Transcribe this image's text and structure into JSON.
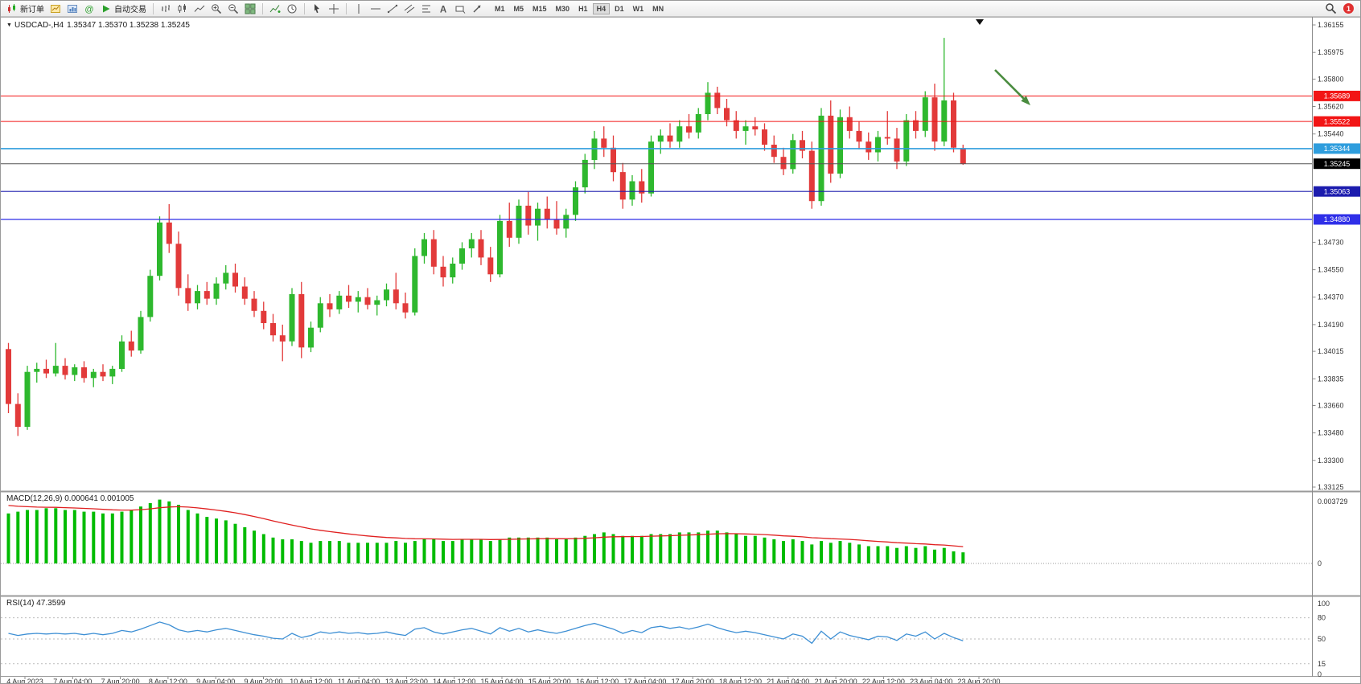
{
  "toolbar": {
    "new_order_label": "新订单",
    "autotrade_label": "自动交易",
    "timeframes": [
      "M1",
      "M5",
      "M15",
      "M30",
      "H1",
      "H4",
      "D1",
      "W1",
      "MN"
    ],
    "active_timeframe": "H4",
    "notification_count": "1"
  },
  "main_chart": {
    "title": "USDCAD-,H4",
    "ohlc_text": "1.35347 1.35370 1.35238 1.35245"
  },
  "macd_panel": {
    "name": "MACD(12,26,9)",
    "values_text": "0.000641 0.001005"
  },
  "rsi_panel": {
    "name": "RSI(14)",
    "value_text": "47.3599"
  },
  "chart_data": {
    "type": "candlestick",
    "symbol": "USDCAD-",
    "timeframe": "H4",
    "price_axis": {
      "top_price": 1.36155,
      "bottom_price": 1.33125,
      "ticks": [
        "1.36155",
        "1.35975",
        "1.35800",
        "1.35620",
        "1.35440",
        "1.34730",
        "1.34550",
        "1.34370",
        "1.34190",
        "1.34015",
        "1.33835",
        "1.33660",
        "1.33480",
        "1.33300",
        "1.33125"
      ]
    },
    "time_labels": [
      "4 Aug 2023",
      "7 Aug 04:00",
      "7 Aug 20:00",
      "8 Aug 12:00",
      "9 Aug 04:00",
      "9 Aug 20:00",
      "10 Aug 12:00",
      "11 Aug 04:00",
      "13 Aug 23:00",
      "14 Aug 12:00",
      "15 Aug 04:00",
      "15 Aug 20:00",
      "16 Aug 12:00",
      "17 Aug 04:00",
      "17 Aug 20:00",
      "18 Aug 12:00",
      "21 Aug 04:00",
      "21 Aug 20:00",
      "22 Aug 12:00",
      "23 Aug 04:00",
      "23 Aug 20:00"
    ],
    "hlines": [
      {
        "label": "1.35689",
        "price": 1.35689,
        "color": "#f21515",
        "width": 1
      },
      {
        "label": "1.35522",
        "price": 1.35522,
        "color": "#f21515",
        "width": 1
      },
      {
        "label": "1.35344",
        "price": 1.35344,
        "color": "#2e9ddd",
        "width": 1.6
      },
      {
        "label": "1.35063",
        "price": 1.35063,
        "color": "#1c1cae",
        "width": 1.2
      },
      {
        "label": "1.34880",
        "price": 1.3488,
        "color": "#2f2fe8",
        "width": 1.2
      }
    ],
    "current_price": {
      "label": "1.35245",
      "price": 1.35245,
      "line_color": "#555555",
      "box_color": "#000000"
    },
    "up_color": "#2eb82e",
    "down_color": "#e23a3a",
    "candles_ohlc": [
      [
        1.3403,
        1.3407,
        1.3361,
        1.3367
      ],
      [
        1.3367,
        1.3374,
        1.3346,
        1.3352
      ],
      [
        1.3352,
        1.3392,
        1.335,
        1.3388
      ],
      [
        1.3388,
        1.3394,
        1.3381,
        1.339
      ],
      [
        1.339,
        1.3396,
        1.3384,
        1.3387
      ],
      [
        1.3387,
        1.3407,
        1.3385,
        1.3392
      ],
      [
        1.3392,
        1.3397,
        1.3383,
        1.3386
      ],
      [
        1.3386,
        1.3393,
        1.3382,
        1.3391
      ],
      [
        1.3391,
        1.3395,
        1.3381,
        1.3384
      ],
      [
        1.3384,
        1.339,
        1.3378,
        1.3388
      ],
      [
        1.3388,
        1.3393,
        1.3382,
        1.3385
      ],
      [
        1.3385,
        1.3392,
        1.338,
        1.339
      ],
      [
        1.339,
        1.3412,
        1.3388,
        1.3408
      ],
      [
        1.3408,
        1.3415,
        1.3398,
        1.3402
      ],
      [
        1.3402,
        1.3428,
        1.34,
        1.3424
      ],
      [
        1.3424,
        1.3455,
        1.3421,
        1.3451
      ],
      [
        1.3451,
        1.349,
        1.3448,
        1.3486
      ],
      [
        1.3486,
        1.3498,
        1.3466,
        1.3472
      ],
      [
        1.3472,
        1.348,
        1.3438,
        1.3443
      ],
      [
        1.3443,
        1.3452,
        1.3428,
        1.3433
      ],
      [
        1.3433,
        1.3445,
        1.3429,
        1.3441
      ],
      [
        1.3441,
        1.3447,
        1.3432,
        1.3436
      ],
      [
        1.3436,
        1.345,
        1.3432,
        1.3446
      ],
      [
        1.3446,
        1.3458,
        1.3442,
        1.3453
      ],
      [
        1.3453,
        1.3459,
        1.344,
        1.3444
      ],
      [
        1.3444,
        1.345,
        1.3432,
        1.3436
      ],
      [
        1.3436,
        1.3441,
        1.3424,
        1.3428
      ],
      [
        1.3428,
        1.3434,
        1.3416,
        1.342
      ],
      [
        1.342,
        1.3426,
        1.3408,
        1.3412
      ],
      [
        1.3412,
        1.3419,
        1.3395,
        1.3408
      ],
      [
        1.3408,
        1.3443,
        1.3405,
        1.3439
      ],
      [
        1.3439,
        1.3447,
        1.3397,
        1.3404
      ],
      [
        1.3404,
        1.3421,
        1.3401,
        1.3417
      ],
      [
        1.3417,
        1.3437,
        1.3414,
        1.3433
      ],
      [
        1.3433,
        1.3439,
        1.3424,
        1.3429
      ],
      [
        1.3429,
        1.3441,
        1.3426,
        1.3438
      ],
      [
        1.3438,
        1.3445,
        1.343,
        1.3434
      ],
      [
        1.3434,
        1.3441,
        1.3427,
        1.3437
      ],
      [
        1.3437,
        1.3443,
        1.3429,
        1.3432
      ],
      [
        1.3432,
        1.3438,
        1.3425,
        1.3435
      ],
      [
        1.3435,
        1.3446,
        1.3431,
        1.3442
      ],
      [
        1.3442,
        1.3453,
        1.3429,
        1.3433
      ],
      [
        1.3433,
        1.344,
        1.3423,
        1.3427
      ],
      [
        1.3427,
        1.3469,
        1.3425,
        1.3464
      ],
      [
        1.3464,
        1.3479,
        1.3459,
        1.3475
      ],
      [
        1.3475,
        1.3481,
        1.3452,
        1.3457
      ],
      [
        1.3457,
        1.3464,
        1.3444,
        1.345
      ],
      [
        1.345,
        1.3463,
        1.3446,
        1.3459
      ],
      [
        1.3459,
        1.3473,
        1.3455,
        1.3469
      ],
      [
        1.3469,
        1.3479,
        1.3463,
        1.3475
      ],
      [
        1.3475,
        1.3481,
        1.3458,
        1.3463
      ],
      [
        1.3463,
        1.347,
        1.3447,
        1.3452
      ],
      [
        1.3452,
        1.3491,
        1.345,
        1.3487
      ],
      [
        1.3487,
        1.3499,
        1.347,
        1.3476
      ],
      [
        1.3476,
        1.3501,
        1.3472,
        1.3497
      ],
      [
        1.3497,
        1.3506,
        1.3478,
        1.3484
      ],
      [
        1.3484,
        1.3499,
        1.3474,
        1.3495
      ],
      [
        1.3495,
        1.3503,
        1.3482,
        1.3488
      ],
      [
        1.3488,
        1.35,
        1.3478,
        1.3482
      ],
      [
        1.3482,
        1.3495,
        1.3476,
        1.3491
      ],
      [
        1.3491,
        1.3513,
        1.3487,
        1.3509
      ],
      [
        1.3509,
        1.3531,
        1.3505,
        1.3527
      ],
      [
        1.3527,
        1.3546,
        1.3521,
        1.3541
      ],
      [
        1.3541,
        1.3549,
        1.3529,
        1.3535
      ],
      [
        1.3535,
        1.3543,
        1.3513,
        1.3519
      ],
      [
        1.3519,
        1.3525,
        1.3495,
        1.3501
      ],
      [
        1.3501,
        1.3517,
        1.3497,
        1.3513
      ],
      [
        1.3513,
        1.3521,
        1.3499,
        1.3505
      ],
      [
        1.3505,
        1.3543,
        1.3503,
        1.3539
      ],
      [
        1.3539,
        1.3547,
        1.3531,
        1.3543
      ],
      [
        1.3543,
        1.3551,
        1.3535,
        1.3539
      ],
      [
        1.3539,
        1.3553,
        1.3535,
        1.3549
      ],
      [
        1.3549,
        1.3557,
        1.3541,
        1.3545
      ],
      [
        1.3545,
        1.3561,
        1.3541,
        1.3557
      ],
      [
        1.3557,
        1.3578,
        1.3553,
        1.3571
      ],
      [
        1.3571,
        1.3575,
        1.3557,
        1.3561
      ],
      [
        1.3561,
        1.3567,
        1.3549,
        1.3553
      ],
      [
        1.3553,
        1.3559,
        1.3541,
        1.3546
      ],
      [
        1.3546,
        1.3553,
        1.3537,
        1.3549
      ],
      [
        1.3549,
        1.3555,
        1.3543,
        1.3547
      ],
      [
        1.3547,
        1.3551,
        1.3533,
        1.3537
      ],
      [
        1.3537,
        1.3543,
        1.3525,
        1.3529
      ],
      [
        1.3529,
        1.3535,
        1.3517,
        1.3521
      ],
      [
        1.3521,
        1.3544,
        1.3518,
        1.354
      ],
      [
        1.354,
        1.3546,
        1.3528,
        1.3533
      ],
      [
        1.3533,
        1.3539,
        1.3495,
        1.35
      ],
      [
        1.35,
        1.3561,
        1.3497,
        1.3556
      ],
      [
        1.3556,
        1.3566,
        1.3512,
        1.3518
      ],
      [
        1.3518,
        1.356,
        1.3515,
        1.3555
      ],
      [
        1.3555,
        1.3562,
        1.3541,
        1.3546
      ],
      [
        1.3546,
        1.3552,
        1.3534,
        1.3539
      ],
      [
        1.3539,
        1.3545,
        1.3527,
        1.3532
      ],
      [
        1.3532,
        1.3546,
        1.3526,
        1.3542
      ],
      [
        1.3542,
        1.3559,
        1.3537,
        1.3541
      ],
      [
        1.3541,
        1.3548,
        1.3521,
        1.3526
      ],
      [
        1.3526,
        1.3557,
        1.3523,
        1.3553
      ],
      [
        1.3553,
        1.3559,
        1.3541,
        1.3546
      ],
      [
        1.3546,
        1.3572,
        1.3542,
        1.3568
      ],
      [
        1.3568,
        1.3577,
        1.3533,
        1.3539
      ],
      [
        1.3539,
        1.3607,
        1.3536,
        1.3566
      ],
      [
        1.3566,
        1.3571,
        1.3532,
        1.3535
      ],
      [
        1.35347,
        1.3537,
        1.35238,
        1.35245
      ]
    ],
    "macd": {
      "params": "12,26,9",
      "main_value": 0.000641,
      "signal_value": 0.001005,
      "axis_labels": [
        "0.003729",
        "0"
      ],
      "max_scale": 0.003729,
      "hist_color": "#00bb00",
      "signal_color": "#e02020",
      "histogram": [
        0.0029,
        0.003,
        0.0031,
        0.0031,
        0.0032,
        0.0032,
        0.0031,
        0.0031,
        0.003,
        0.003,
        0.0029,
        0.0029,
        0.003,
        0.0031,
        0.0033,
        0.0035,
        0.0037,
        0.0036,
        0.0034,
        0.0031,
        0.0029,
        0.0027,
        0.0026,
        0.0025,
        0.0023,
        0.0021,
        0.0019,
        0.0017,
        0.0015,
        0.0014,
        0.0014,
        0.0013,
        0.0012,
        0.0013,
        0.0013,
        0.0013,
        0.0012,
        0.0012,
        0.0012,
        0.0012,
        0.0012,
        0.0013,
        0.0012,
        0.0013,
        0.0014,
        0.0014,
        0.0013,
        0.0013,
        0.0014,
        0.0014,
        0.0014,
        0.0013,
        0.0014,
        0.0015,
        0.0015,
        0.0015,
        0.0015,
        0.0015,
        0.0014,
        0.0014,
        0.0015,
        0.0016,
        0.0017,
        0.0018,
        0.0017,
        0.0016,
        0.0016,
        0.0016,
        0.0017,
        0.0017,
        0.0017,
        0.0018,
        0.0018,
        0.0018,
        0.0019,
        0.0019,
        0.0018,
        0.0017,
        0.0016,
        0.0016,
        0.0015,
        0.0014,
        0.0013,
        0.0014,
        0.0013,
        0.0011,
        0.0013,
        0.0012,
        0.0013,
        0.0012,
        0.0011,
        0.001,
        0.001,
        0.001,
        0.0009,
        0.001,
        0.0009,
        0.001,
        0.0008,
        0.0009,
        0.0007,
        0.000641
      ]
    },
    "rsi": {
      "period": 14,
      "current": 47.3599,
      "axis_labels": [
        "100",
        "80",
        "50",
        "15",
        "0"
      ],
      "levels": [
        80,
        50,
        15
      ],
      "line_color": "#3d8fd4",
      "values": [
        58,
        55,
        57,
        58,
        57,
        58,
        57,
        58,
        56,
        58,
        56,
        58,
        62,
        60,
        64,
        69,
        74,
        70,
        63,
        60,
        62,
        60,
        63,
        65,
        62,
        59,
        56,
        54,
        51,
        50,
        58,
        52,
        55,
        60,
        58,
        60,
        58,
        59,
        57,
        58,
        60,
        57,
        55,
        64,
        66,
        60,
        57,
        60,
        63,
        65,
        61,
        57,
        66,
        61,
        65,
        60,
        63,
        60,
        58,
        61,
        65,
        69,
        72,
        68,
        64,
        58,
        62,
        59,
        66,
        68,
        65,
        67,
        64,
        67,
        71,
        66,
        62,
        59,
        61,
        59,
        56,
        53,
        50,
        57,
        54,
        44,
        61,
        50,
        60,
        55,
        52,
        49,
        54,
        53,
        48,
        57,
        54,
        60,
        50,
        58,
        52,
        47.36
      ]
    },
    "annotation_arrow": {
      "color": "#4a8c3f"
    }
  }
}
